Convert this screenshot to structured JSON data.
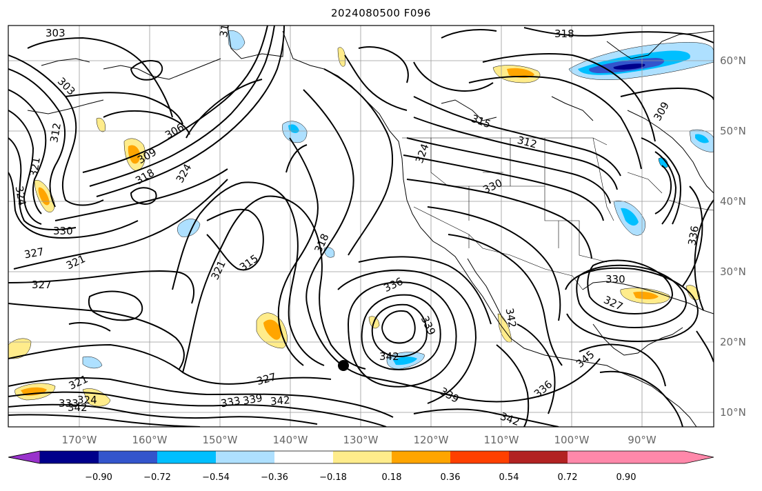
{
  "title": "2024080500 F096",
  "longitude_labels": [
    "170°W",
    "160°W",
    "150°W",
    "140°W",
    "130°W",
    "120°W",
    "110°W",
    "100°W",
    "90°W"
  ],
  "latitude_labels": [
    "60°N",
    "50°N",
    "40°N",
    "30°N",
    "20°N",
    "10°N"
  ],
  "contour_labels": [
    {
      "text": "303"
    },
    {
      "text": "31"
    },
    {
      "text": "318"
    },
    {
      "text": "303"
    },
    {
      "text": "312"
    },
    {
      "text": "306"
    },
    {
      "text": "309"
    },
    {
      "text": "318"
    },
    {
      "text": "324"
    },
    {
      "text": "321"
    },
    {
      "text": "324"
    },
    {
      "text": "330"
    },
    {
      "text": "327"
    },
    {
      "text": "321"
    },
    {
      "text": "327"
    },
    {
      "text": "321"
    },
    {
      "text": "315"
    },
    {
      "text": "318"
    },
    {
      "text": "336"
    },
    {
      "text": "339"
    },
    {
      "text": "342"
    },
    {
      "text": "327"
    },
    {
      "text": "333"
    },
    {
      "text": "339"
    },
    {
      "text": "342"
    },
    {
      "text": "333"
    },
    {
      "text": "324"
    },
    {
      "text": "342"
    },
    {
      "text": "339"
    },
    {
      "text": "342"
    },
    {
      "text": "336"
    },
    {
      "text": "315"
    },
    {
      "text": "312"
    },
    {
      "text": "330"
    },
    {
      "text": "309"
    },
    {
      "text": "330"
    },
    {
      "text": "327"
    },
    {
      "text": "336"
    },
    {
      "text": "345"
    },
    {
      "text": "342"
    },
    {
      "text": "321"
    },
    {
      "text": "324"
    }
  ],
  "colorbar": {
    "colors": [
      "#9932cc",
      "#00008b",
      "#3355cc",
      "#00bfff",
      "#aee0ff",
      "#ffffff",
      "#ffec8b",
      "#ffa500",
      "#ff4000",
      "#b22222",
      "#ff88aa"
    ],
    "tick_labels": [
      "−0.90",
      "−0.72",
      "−0.54",
      "−0.36",
      "−0.18",
      "0.18",
      "0.36",
      "0.54",
      "0.72",
      "0.90"
    ]
  },
  "shading_colors": {
    "neg_light": "#aee0ff",
    "neg_mid": "#00bfff",
    "neg_strong": "#3355cc",
    "neg_deep": "#00008b",
    "pos_light": "#ffec8b",
    "pos_mid": "#ffa500",
    "pos_strong": "#ff4000"
  },
  "marker": {
    "icon": "storm-center-dot",
    "color": "#000000"
  }
}
